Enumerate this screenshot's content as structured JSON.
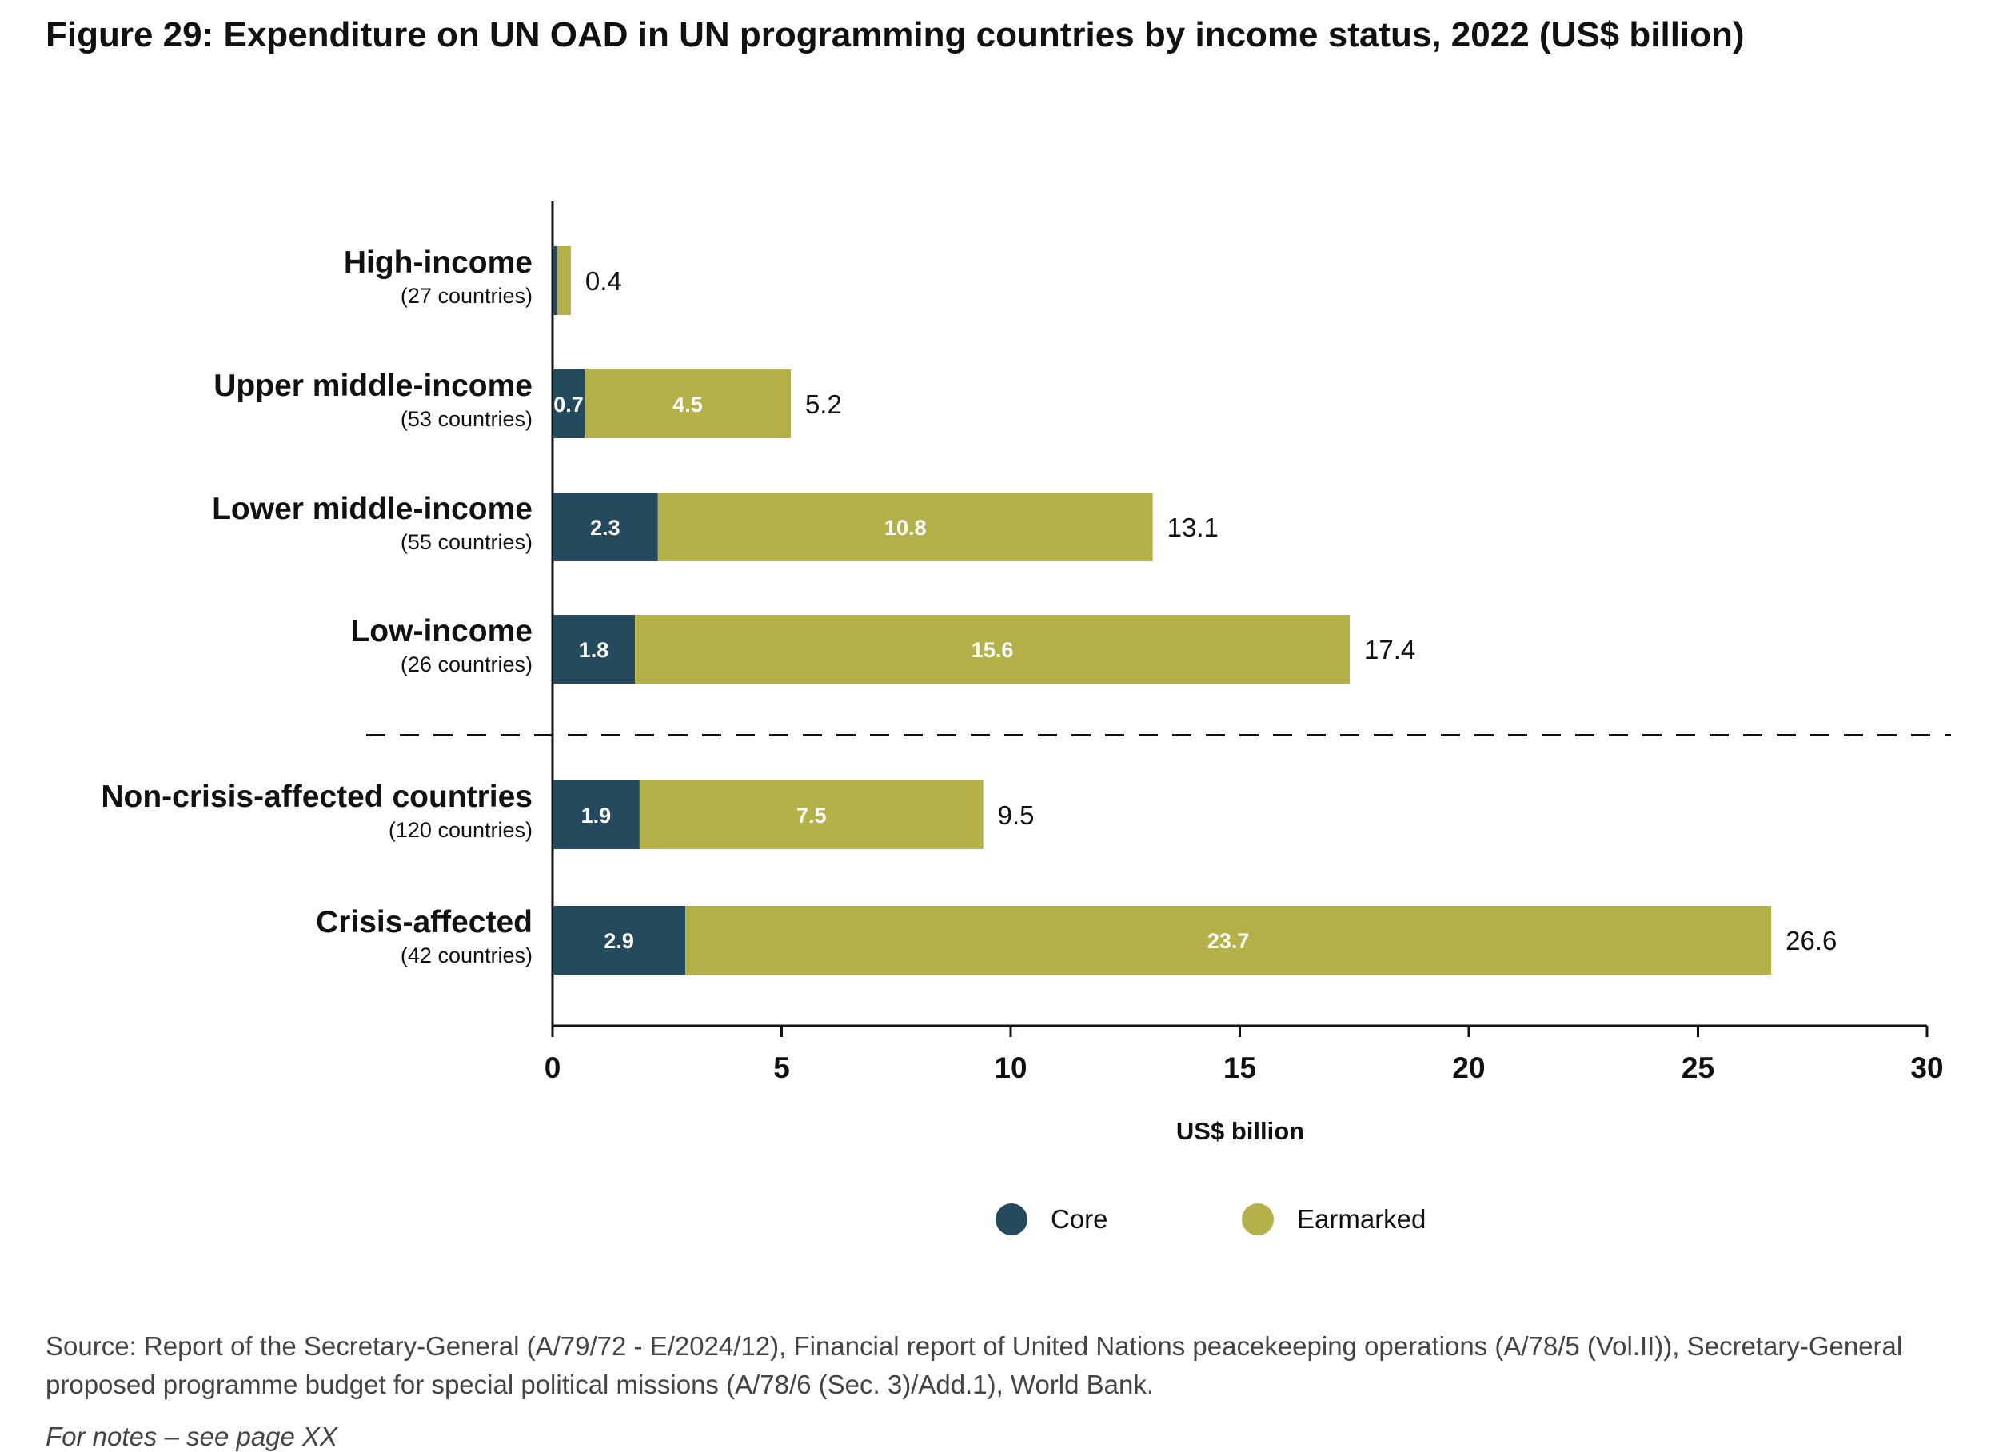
{
  "chart_data": {
    "type": "bar",
    "orientation": "horizontal",
    "stacked": true,
    "title": "Figure 29: Expenditure on UN OAD in UN programming countries by income status, 2022 (US$ billion)",
    "xlabel": "US$ billion",
    "ylabel": "",
    "xlim": [
      0,
      30
    ],
    "xticks": [
      0,
      5,
      10,
      15,
      20,
      25,
      30
    ],
    "categories": [
      {
        "name": "High-income",
        "sub": "(27 countries)"
      },
      {
        "name": "Upper middle-income",
        "sub": "(53 countries)"
      },
      {
        "name": "Lower middle-income",
        "sub": "(55 countries)"
      },
      {
        "name": "Low-income",
        "sub": "(26 countries)"
      },
      {
        "name": "Non-crisis-affected countries",
        "sub": "(120 countries)"
      },
      {
        "name": "Crisis-affected",
        "sub": "(42 countries)"
      }
    ],
    "series": [
      {
        "name": "Core",
        "color": "#244a5e",
        "values": [
          0.1,
          0.7,
          2.3,
          1.8,
          1.9,
          2.9
        ],
        "labels": [
          "",
          "0.7",
          "2.3",
          "1.8",
          "1.9",
          "2.9"
        ]
      },
      {
        "name": "Earmarked",
        "color": "#b5b149",
        "values": [
          0.3,
          4.5,
          10.8,
          15.6,
          7.5,
          23.7
        ],
        "labels": [
          "",
          "4.5",
          "10.8",
          "15.6",
          "7.5",
          "23.7"
        ]
      }
    ],
    "totals": [
      "0.4",
      "5.2",
      "13.1",
      "17.4",
      "9.5",
      "26.6"
    ],
    "separator_after_index": 3,
    "legend_position": "bottom"
  },
  "legend": {
    "core": "Core",
    "earmarked": "Earmarked",
    "core_color": "#244a5e",
    "earmarked_color": "#b5b149"
  },
  "source": "Source: Report of the Secretary-General (A/79/72 - E/2024/12), Financial report of United Nations peacekeeping operations (A/78/5 (Vol.II)), Secretary-General proposed programme budget for special political missions (A/78/6 (Sec. 3)/Add.1), World Bank.",
  "notes": "For notes – see page XX"
}
